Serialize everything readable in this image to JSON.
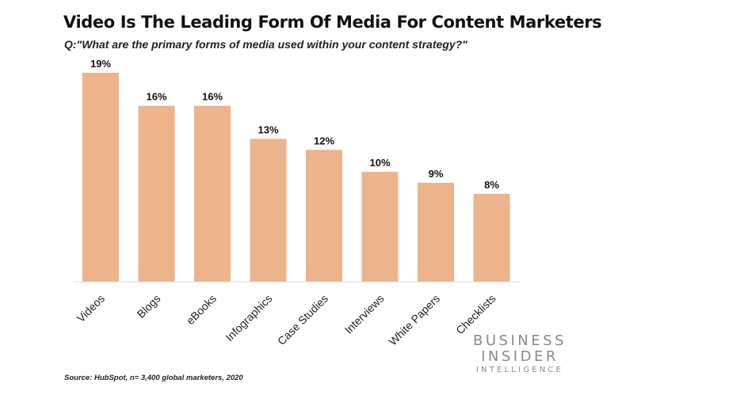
{
  "header": {
    "title": "Video Is The Leading Form Of Media For Content Marketers",
    "subtitle": "Q:\"What are the primary forms of media used within your content strategy?\""
  },
  "footer": {
    "source": "Source: HubSpot, n= 3,400 global marketers, 2020"
  },
  "logo": {
    "line1": "BUSINESS",
    "line2": "INSIDER",
    "line3": "INTELLIGENCE"
  },
  "colors": {
    "bar": "#EDB38A",
    "axis": "#D9D9D9",
    "logo_text": "#8A8A8A"
  },
  "chart_data": {
    "type": "bar",
    "title": "Video Is The Leading Form Of Media For Content Marketers",
    "subtitle": "Q:\"What are the primary forms of media used within your content strategy?\"",
    "categories": [
      "Videos",
      "Blogs",
      "eBooks",
      "Infographics",
      "Case Studies",
      "Interviews",
      "White Papers",
      "Checklists"
    ],
    "values": [
      19,
      16,
      16,
      13,
      12,
      10,
      9,
      8
    ],
    "value_labels": [
      "19%",
      "16%",
      "16%",
      "13%",
      "12%",
      "10%",
      "9%",
      "8%"
    ],
    "unit": "%",
    "ylim": [
      0,
      19
    ],
    "grid": false,
    "legend": "none"
  }
}
